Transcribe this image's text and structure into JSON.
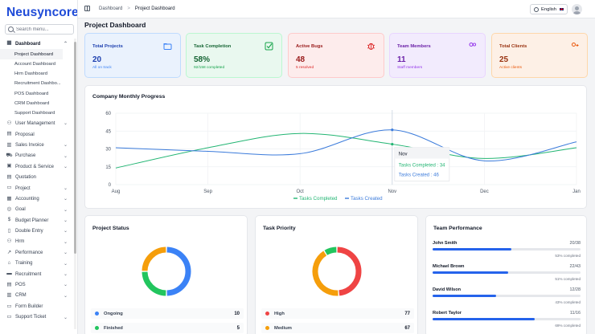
{
  "app": {
    "brand": "Neusyncore"
  },
  "search": {
    "placeholder": "Search menu..."
  },
  "sidebar": {
    "items": [
      {
        "label": "Dashboard",
        "icon": "grid-icon",
        "expanded": true,
        "active": true,
        "children": [
          "Project Dashboard",
          "Account Dashboard",
          "Hrm Dashboard",
          "Recruitment Dashbo...",
          "POS Dashboard",
          "CRM Dashboard",
          "Support Dashboard"
        ]
      },
      {
        "label": "User Management",
        "icon": "users-icon",
        "chevron": true
      },
      {
        "label": "Proposal",
        "icon": "document-icon",
        "chevron": false
      },
      {
        "label": "Sales Invoice",
        "icon": "invoice-icon",
        "chevron": true
      },
      {
        "label": "Purchase",
        "icon": "cart-icon",
        "chevron": true
      },
      {
        "label": "Product & Service",
        "icon": "box-icon",
        "chevron": true
      },
      {
        "label": "Quotation",
        "icon": "quote-icon",
        "chevron": false
      },
      {
        "label": "Project",
        "icon": "folder-icon",
        "chevron": true
      },
      {
        "label": "Accounting",
        "icon": "calculator-icon",
        "chevron": true
      },
      {
        "label": "Goal",
        "icon": "target-icon",
        "chevron": true
      },
      {
        "label": "Budget Planner",
        "icon": "dollar-icon",
        "chevron": true
      },
      {
        "label": "Double Entry",
        "icon": "book-icon",
        "chevron": true
      },
      {
        "label": "Hrm",
        "icon": "people-icon",
        "chevron": true
      },
      {
        "label": "Performance",
        "icon": "trend-icon",
        "chevron": true
      },
      {
        "label": "Training",
        "icon": "graduation-icon",
        "chevron": true
      },
      {
        "label": "Recruitment",
        "icon": "briefcase-icon",
        "chevron": true
      },
      {
        "label": "POS",
        "icon": "pos-icon",
        "chevron": true
      },
      {
        "label": "CRM",
        "icon": "crm-icon",
        "chevron": true
      },
      {
        "label": "Form Builder",
        "icon": "form-icon",
        "chevron": false
      },
      {
        "label": "Support Ticket",
        "icon": "ticket-icon",
        "chevron": true
      }
    ],
    "active_child": "Project Dashboard"
  },
  "topbar": {
    "breadcrumb": [
      "Dashboard",
      "Project Dashboard"
    ],
    "language": "English"
  },
  "page": {
    "title": "Project Dashboard"
  },
  "stats": [
    {
      "label": "Total Projects",
      "value": "20",
      "sub": "All on track",
      "icon": "folder-icon",
      "bg": "#eaf2fd",
      "border": "#bfdbfe",
      "color": "#1e40af",
      "accent": "#3b82f6"
    },
    {
      "label": "Task Completion",
      "value": "58%",
      "sub": "92/158 completed",
      "icon": "check-square-icon",
      "bg": "#e9f8ef",
      "border": "#bbf7d0",
      "color": "#166534",
      "accent": "#16a34a"
    },
    {
      "label": "Active Bugs",
      "value": "48",
      "sub": "5 resolved",
      "icon": "bug-icon",
      "bg": "#fdecec",
      "border": "#fecaca",
      "color": "#991b1b",
      "accent": "#dc2626"
    },
    {
      "label": "Team Members",
      "value": "11",
      "sub": "Staff members",
      "icon": "team-icon",
      "bg": "#f2ebfd",
      "border": "#e9d5ff",
      "color": "#6b21a8",
      "accent": "#9333ea"
    },
    {
      "label": "Total Clients",
      "value": "25",
      "sub": "Active clients",
      "icon": "user-plus-icon",
      "bg": "#fdf0e6",
      "border": "#fed7aa",
      "color": "#9a3412",
      "accent": "#ea580c"
    }
  ],
  "progress": {
    "title": "Company Monthly Progress",
    "tooltip": {
      "month": "Nov",
      "completed": "Tasks Completed : 34",
      "created": "Tasks Created : 46"
    }
  },
  "chart_data": {
    "type": "line",
    "x": [
      "Aug",
      "Sep",
      "Oct",
      "Nov",
      "Dec",
      "Jan"
    ],
    "ylim": [
      0,
      60
    ],
    "yticks": [
      0,
      15,
      30,
      45,
      60
    ],
    "grid": true,
    "legend": "bottom",
    "series": [
      {
        "name": "Tasks Completed",
        "color": "#22b573",
        "values": [
          14,
          31,
          43,
          34,
          22,
          31
        ]
      },
      {
        "name": "Tasks Created",
        "color": "#3b7bdb",
        "values": [
          31,
          28,
          26,
          46,
          20,
          36
        ]
      }
    ]
  },
  "project_status": {
    "title": "Project Status",
    "segments": [
      {
        "label": "Ongoing",
        "value": 10,
        "color": "#3b82f6"
      },
      {
        "label": "Finished",
        "value": 5,
        "color": "#22c55e"
      },
      {
        "label": "",
        "value": 5,
        "color": "#f59e0b"
      }
    ]
  },
  "task_priority": {
    "title": "Task Priority",
    "segments": [
      {
        "label": "High",
        "value": 77,
        "color": "#ef4444"
      },
      {
        "label": "Medium",
        "value": 67,
        "color": "#f59e0b"
      },
      {
        "label": "",
        "value": 14,
        "color": "#22c55e"
      }
    ]
  },
  "team_performance": {
    "title": "Team Performance",
    "members": [
      {
        "name": "John Smith",
        "fraction": "20/38",
        "percent": "53% completed",
        "ratio": 0.53
      },
      {
        "name": "Michael Brown",
        "fraction": "22/43",
        "percent": "51% completed",
        "ratio": 0.51
      },
      {
        "name": "David Wilson",
        "fraction": "12/28",
        "percent": "43% completed",
        "ratio": 0.43
      },
      {
        "name": "Robert Taylor",
        "fraction": "11/16",
        "percent": "69% completed",
        "ratio": 0.69
      }
    ]
  }
}
